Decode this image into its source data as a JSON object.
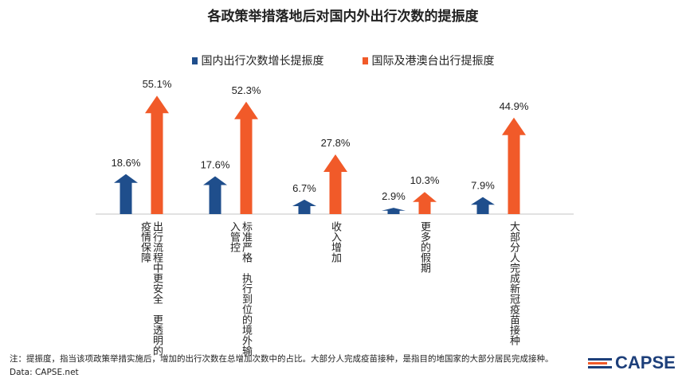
{
  "chart_data": {
    "type": "bar",
    "title": "各政策举措落地后对国内外出行次数的提振度",
    "categories": [
      "出行流程中更安全　更透明的\n疫情保障",
      "标准严格　执行到位的境外输\n入管控",
      "收入增加",
      "更多的假期",
      "大部分人完成新冠疫苗接种"
    ],
    "series": [
      {
        "name": "国内出行次数增长提振度",
        "values": [
          18.6,
          17.6,
          6.7,
          2.9,
          7.9
        ],
        "labels": [
          "18.6%",
          "17.6%",
          "6.7%",
          "2.9%",
          "7.9%"
        ],
        "color": "#1f4e8c"
      },
      {
        "name": "国际及港澳台出行提振度",
        "values": [
          55.1,
          52.3,
          27.8,
          10.3,
          44.9
        ],
        "labels": [
          "55.1%",
          "52.3%",
          "27.8%",
          "10.3%",
          "44.9%"
        ],
        "color": "#f15a29"
      }
    ],
    "mark": "arrow",
    "legend": "top",
    "grid": false,
    "ylim": [
      0,
      60
    ]
  },
  "note": "注：提振度，指当该项政策举措实施后，增加的出行次数在总增加次数中的占比。大部分人完成疫苗接种，是指目的地国家的大部分居民完成接种。",
  "source": "Data: CAPSE.net",
  "logo": "CAPSE"
}
